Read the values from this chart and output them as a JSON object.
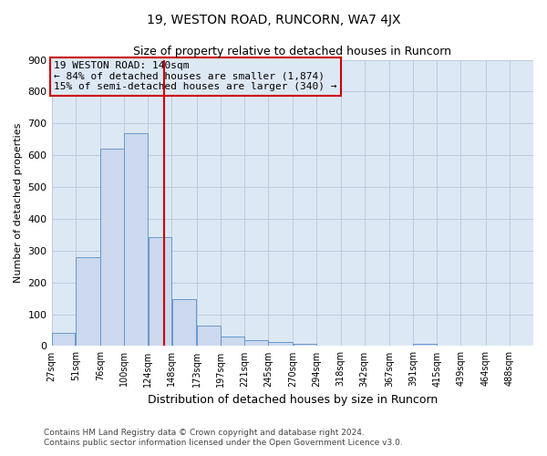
{
  "title": "19, WESTON ROAD, RUNCORN, WA7 4JX",
  "subtitle": "Size of property relative to detached houses in Runcorn",
  "xlabel": "Distribution of detached houses by size in Runcorn",
  "ylabel": "Number of detached properties",
  "bar_edges": [
    27,
    51,
    76,
    100,
    124,
    148,
    173,
    197,
    221,
    245,
    270,
    294,
    318,
    342,
    367,
    391,
    415,
    439,
    464,
    488,
    512
  ],
  "bar_heights": [
    42,
    280,
    622,
    670,
    343,
    147,
    65,
    30,
    18,
    12,
    8,
    0,
    0,
    0,
    0,
    7,
    0,
    0,
    0,
    0
  ],
  "bar_color": "#ccd9ee",
  "bar_edge_color": "#6699cc",
  "property_line_x": 140,
  "property_line_color": "#cc0000",
  "ylim": [
    0,
    900
  ],
  "yticks": [
    0,
    100,
    200,
    300,
    400,
    500,
    600,
    700,
    800,
    900
  ],
  "annotation_title": "19 WESTON ROAD: 140sqm",
  "annotation_line1": "← 84% of detached houses are smaller (1,874)",
  "annotation_line2": "15% of semi-detached houses are larger (340) →",
  "annotation_box_color": "#cc0000",
  "grid_color": "#bbccdd",
  "plot_bg_color": "#dde8f5",
  "fig_bg_color": "#ffffff",
  "footer1": "Contains HM Land Registry data © Crown copyright and database right 2024.",
  "footer2": "Contains public sector information licensed under the Open Government Licence v3.0."
}
